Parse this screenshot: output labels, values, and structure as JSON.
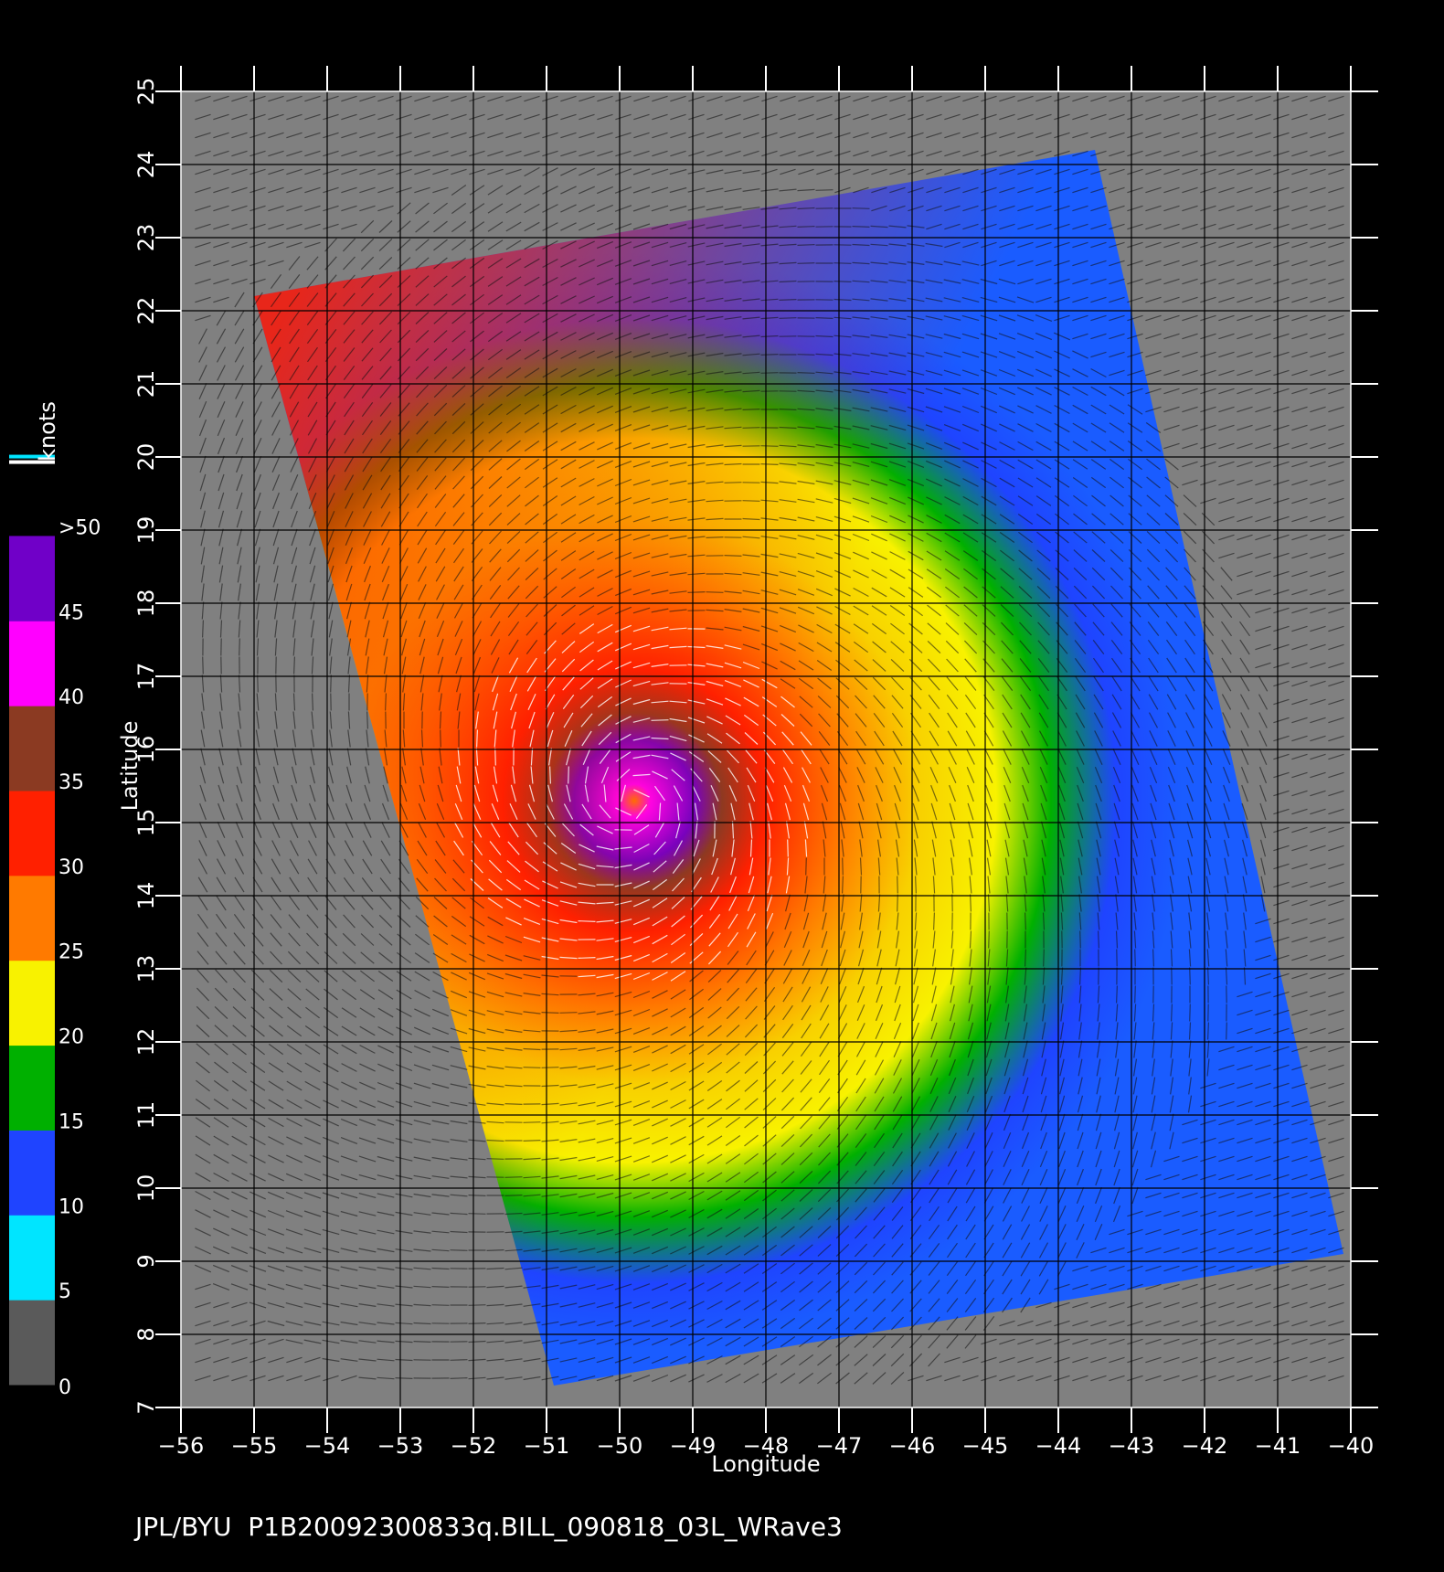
{
  "figure": {
    "caption": "JPL/BYU  P1B20092300833q.BILL_090818_03L_WRave3",
    "xlabel": "Longitude",
    "ylabel": "Latitude",
    "xlim": [
      -56,
      -40
    ],
    "ylim": [
      7,
      25
    ],
    "xticks": [
      "−56",
      "−55",
      "−54",
      "−53",
      "−52",
      "−51",
      "−50",
      "−49",
      "−48",
      "−47",
      "−46",
      "−45",
      "−44",
      "−43",
      "−42",
      "−41",
      "−40"
    ],
    "yticks": [
      "7",
      "8",
      "9",
      "10",
      "11",
      "12",
      "13",
      "14",
      "15",
      "16",
      "17",
      "18",
      "19",
      "20",
      "21",
      "22",
      "23",
      "24",
      "25"
    ],
    "background_color": "#808080",
    "grid": true
  },
  "colorbar": {
    "unit_label": "knots",
    "labels": [
      "0",
      "5",
      "10",
      "15",
      "20",
      "25",
      "30",
      "35",
      "40",
      "45",
      ">50"
    ],
    "colors": {
      "0-5": "#5a5a5a",
      "5-10": "#00e5ff",
      "10-15": "#1f44ff",
      "15-20": "#00b000",
      "20-25": "#f8f200",
      "25-30": "#ff7a00",
      "30-35": "#ff2000",
      "35-40": "#8b3a22",
      "40-45": "#ff00ff",
      ">45": "#7000c8"
    }
  },
  "storm": {
    "name": "BILL",
    "center_lon": -49.8,
    "center_lat": 15.3
  },
  "swath": {
    "corners": [
      [
        -55.0,
        22.2
      ],
      [
        -43.5,
        24.2
      ],
      [
        -40.1,
        9.1
      ],
      [
        -50.9,
        7.3
      ]
    ]
  }
}
